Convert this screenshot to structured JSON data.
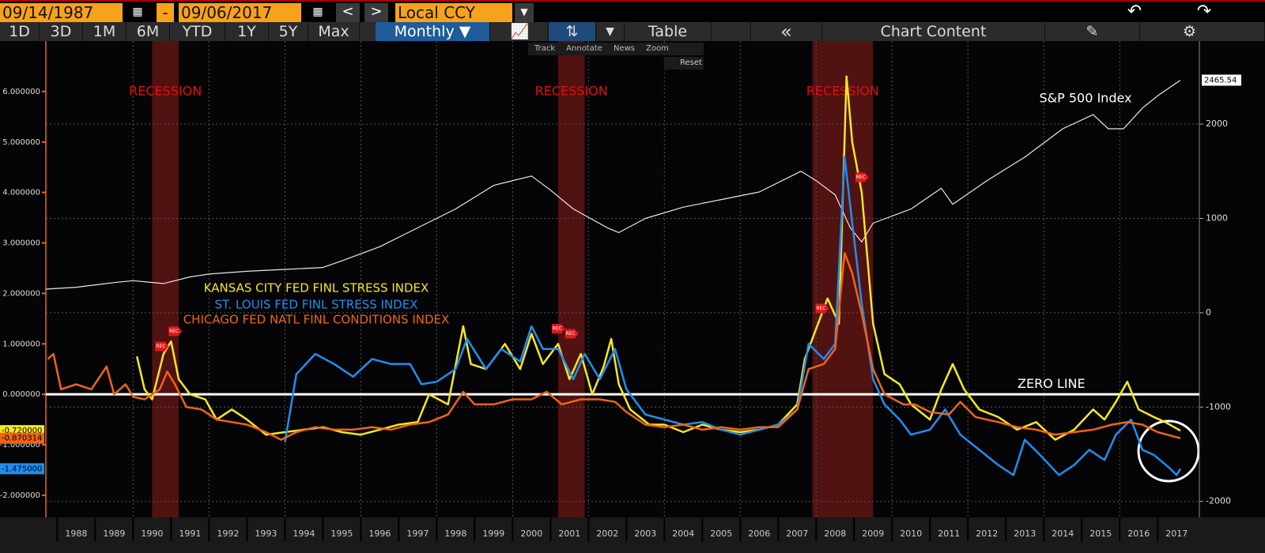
{
  "toolbar": {
    "start_date": "09/14/1987",
    "dash": "-",
    "end_date": "09/06/2017",
    "prev": "<",
    "next": ">",
    "currency": "Local CCY",
    "ranges": [
      "1D",
      "3D",
      "1M",
      "6M",
      "YTD",
      "1Y",
      "5Y",
      "Max"
    ],
    "frequency": "Monthly",
    "table": "Table",
    "collapse": "«",
    "chart_content": "Chart Content",
    "tools": [
      "Track",
      "Annotate",
      "News",
      "Zoom"
    ],
    "reset": "Reset"
  },
  "chart_data": {
    "type": "line",
    "xlim": [
      1987.7,
      2018.1
    ],
    "xticks": [
      1988,
      1989,
      1990,
      1991,
      1992,
      1993,
      1994,
      1995,
      1996,
      1997,
      1998,
      1999,
      2000,
      2001,
      2002,
      2003,
      2004,
      2005,
      2006,
      2007,
      2008,
      2009,
      2010,
      2011,
      2012,
      2013,
      2014,
      2015,
      2016,
      2017
    ],
    "xgrid": [
      1990,
      1992,
      1994,
      1996,
      1998,
      2000,
      2002,
      2004,
      2006,
      2008,
      2010,
      2012,
      2014,
      2016
    ],
    "ylim": [
      -2.44,
      7.0
    ],
    "yticks": [
      {
        "value": -2,
        "label": "-2.000000"
      },
      {
        "value": -1,
        "label": "-1.000000"
      },
      {
        "value": 0,
        "label": "0.000000"
      },
      {
        "value": 1,
        "label": "1.000000"
      },
      {
        "value": 2,
        "label": "2.000000"
      },
      {
        "value": 3,
        "label": "3.000000"
      },
      {
        "value": 4,
        "label": "4.000000"
      },
      {
        "value": 5,
        "label": "5.000000"
      },
      {
        "value": 6,
        "label": "6.000000"
      }
    ],
    "y2lim": [
      -2170,
      2880
    ],
    "y2ticks": [
      -2000,
      -1000,
      0,
      1000,
      2000
    ],
    "grid": true,
    "zero_line": 0,
    "recessions": [
      {
        "start": 1990.5,
        "end": 1991.2,
        "label": "RECESSION"
      },
      {
        "start": 2001.2,
        "end": 2001.9,
        "label": "RECESSION"
      },
      {
        "start": 2007.9,
        "end": 2009.5,
        "label": "RECESSION"
      }
    ],
    "rec_flag_label": "REC",
    "rec_flags": [
      {
        "x": 1990.75,
        "y": 0.95
      },
      {
        "x": 1991.1,
        "y": 1.25
      },
      {
        "x": 2001.2,
        "y": 1.3
      },
      {
        "x": 2001.55,
        "y": 1.2
      },
      {
        "x": 2008.15,
        "y": 1.7
      },
      {
        "x": 2009.2,
        "y": 4.3
      }
    ],
    "annotations": [
      {
        "text": "ZERO LINE",
        "x": 2014.2,
        "y": 0.2
      }
    ],
    "series": [
      {
        "name": "S&P 500 Index",
        "color": "#e8e8e8",
        "axis": "y2",
        "last_label": "2465.54",
        "x": [
          1987.7,
          1988.5,
          1989.5,
          1990.0,
          1990.8,
          1991.5,
          1992.0,
          1993.0,
          1994.0,
          1995.0,
          1995.5,
          1996.5,
          1997.5,
          1998.5,
          1999.5,
          2000.5,
          2001.0,
          2001.6,
          2002.5,
          2002.8,
          2003.5,
          2004.5,
          2005.5,
          2006.5,
          2007.6,
          2008.0,
          2008.5,
          2008.9,
          2009.2,
          2009.5,
          2010.5,
          2011.3,
          2011.6,
          2012.5,
          2013.5,
          2014.5,
          2015.3,
          2015.7,
          2016.1,
          2016.6,
          2017.0,
          2017.6
        ],
        "values": [
          250,
          270,
          320,
          340,
          310,
          380,
          410,
          440,
          460,
          480,
          550,
          700,
          900,
          1100,
          1350,
          1450,
          1300,
          1100,
          900,
          850,
          1000,
          1120,
          1200,
          1280,
          1500,
          1400,
          1250,
          900,
          750,
          950,
          1100,
          1320,
          1150,
          1400,
          1650,
          1950,
          2100,
          1950,
          1950,
          2170,
          2300,
          2465.54
        ]
      },
      {
        "name": "KANSAS CITY FED FINL STRESS INDEX",
        "color": "#f5e81c",
        "axis": "y",
        "last_label": "-0.720000",
        "x": [
          1990.1,
          1990.3,
          1990.5,
          1990.8,
          1991.0,
          1991.2,
          1991.5,
          1991.9,
          1992.2,
          1992.6,
          1993.0,
          1993.5,
          1994.0,
          1994.5,
          1995.0,
          1995.5,
          1996.0,
          1996.5,
          1997.0,
          1997.5,
          1997.8,
          1998.3,
          1998.7,
          1998.9,
          1999.3,
          1999.8,
          2000.2,
          2000.5,
          2000.8,
          2001.2,
          2001.5,
          2001.8,
          2002.1,
          2002.4,
          2002.6,
          2002.8,
          2003.1,
          2003.6,
          2004.0,
          2004.5,
          2005.0,
          2005.5,
          2006.0,
          2006.5,
          2007.0,
          2007.5,
          2007.7,
          2008.0,
          2008.3,
          2008.6,
          2008.8,
          2008.95,
          2009.2,
          2009.5,
          2009.8,
          2010.2,
          2010.5,
          2011.0,
          2011.3,
          2011.6,
          2011.9,
          2012.3,
          2012.8,
          2013.3,
          2013.8,
          2014.3,
          2014.8,
          2015.3,
          2015.6,
          2015.9,
          2016.2,
          2016.5,
          2016.9,
          2017.2,
          2017.6
        ],
        "values": [
          0.75,
          0.1,
          -0.1,
          0.8,
          1.05,
          0.3,
          0.0,
          -0.1,
          -0.5,
          -0.3,
          -0.5,
          -0.8,
          -0.75,
          -0.7,
          -0.65,
          -0.75,
          -0.8,
          -0.7,
          -0.6,
          -0.55,
          0.0,
          -0.2,
          1.35,
          0.6,
          0.5,
          1.0,
          0.5,
          1.2,
          0.6,
          1.0,
          0.3,
          0.8,
          0.0,
          0.55,
          1.1,
          0.2,
          -0.3,
          -0.6,
          -0.6,
          -0.75,
          -0.6,
          -0.7,
          -0.75,
          -0.7,
          -0.6,
          -0.2,
          0.7,
          1.3,
          1.9,
          1.4,
          6.3,
          5.0,
          4.0,
          1.4,
          0.4,
          0.2,
          -0.2,
          -0.5,
          0.1,
          0.6,
          0.1,
          -0.3,
          -0.45,
          -0.7,
          -0.55,
          -0.9,
          -0.7,
          -0.3,
          -0.5,
          -0.15,
          0.25,
          -0.3,
          -0.45,
          -0.55,
          -0.72
        ]
      },
      {
        "name": "ST. LOUIS FED FINL STRESS INDEX",
        "color": "#1e8ff0",
        "axis": "y",
        "last_label": "-1.475000",
        "x": [
          1994.0,
          1994.3,
          1994.8,
          1995.3,
          1995.8,
          1996.3,
          1996.8,
          1997.3,
          1997.6,
          1998.0,
          1998.5,
          1998.8,
          1999.3,
          1999.7,
          2000.2,
          2000.5,
          2000.8,
          2001.2,
          2001.6,
          2001.9,
          2002.3,
          2002.7,
          2003.0,
          2003.5,
          2004.0,
          2004.5,
          2005.0,
          2005.5,
          2006.0,
          2006.5,
          2007.0,
          2007.5,
          2007.8,
          2008.2,
          2008.5,
          2008.75,
          2008.95,
          2009.2,
          2009.5,
          2009.8,
          2010.2,
          2010.5,
          2011.0,
          2011.4,
          2011.8,
          2012.3,
          2012.8,
          2013.2,
          2013.5,
          2013.9,
          2014.4,
          2014.8,
          2015.2,
          2015.6,
          2015.9,
          2016.3,
          2016.6,
          2016.9,
          2017.3,
          2017.5,
          2017.6
        ],
        "values": [
          -0.95,
          0.4,
          0.8,
          0.6,
          0.35,
          0.7,
          0.6,
          0.6,
          0.2,
          0.25,
          0.5,
          1.1,
          0.5,
          0.9,
          0.65,
          1.35,
          0.9,
          0.9,
          0.3,
          0.8,
          0.3,
          0.9,
          0.1,
          -0.4,
          -0.5,
          -0.6,
          -0.55,
          -0.7,
          -0.8,
          -0.7,
          -0.6,
          -0.3,
          1.0,
          0.7,
          1.0,
          4.7,
          3.4,
          1.8,
          0.3,
          -0.2,
          -0.5,
          -0.8,
          -0.7,
          -0.3,
          -0.8,
          -1.1,
          -1.4,
          -1.6,
          -0.9,
          -1.2,
          -1.6,
          -1.4,
          -1.1,
          -1.3,
          -0.8,
          -0.5,
          -1.1,
          -1.2,
          -1.45,
          -1.6,
          -1.475
        ]
      },
      {
        "name": "CHICAGO FED NATL FINL CONDITIONS INDEX",
        "color": "#f06414",
        "axis": "y",
        "last_label": "-0.870314",
        "x": [
          1987.75,
          1987.9,
          1988.1,
          1988.5,
          1988.9,
          1989.3,
          1989.5,
          1989.8,
          1990.0,
          1990.3,
          1990.7,
          1990.9,
          1991.1,
          1991.4,
          1991.8,
          1992.2,
          1992.6,
          1993.0,
          1993.5,
          1993.9,
          1994.3,
          1994.8,
          1995.3,
          1995.8,
          1996.3,
          1996.8,
          1997.3,
          1997.8,
          1998.3,
          1998.7,
          1999.0,
          1999.5,
          2000.0,
          2000.5,
          2000.9,
          2001.3,
          2001.8,
          2002.3,
          2002.7,
          2003.0,
          2003.5,
          2004.0,
          2004.5,
          2005.0,
          2005.5,
          2006.0,
          2006.5,
          2007.0,
          2007.5,
          2007.8,
          2008.2,
          2008.5,
          2008.75,
          2008.95,
          2009.2,
          2009.5,
          2009.8,
          2010.3,
          2010.6,
          2011.0,
          2011.5,
          2011.8,
          2012.2,
          2012.8,
          2013.3,
          2013.8,
          2014.3,
          2014.8,
          2015.3,
          2015.8,
          2016.2,
          2016.6,
          2017.0,
          2017.6
        ],
        "values": [
          0.7,
          0.8,
          0.1,
          0.2,
          0.1,
          0.55,
          0.0,
          0.2,
          -0.05,
          -0.1,
          0.1,
          0.45,
          0.2,
          -0.25,
          -0.3,
          -0.5,
          -0.55,
          -0.6,
          -0.75,
          -0.9,
          -0.75,
          -0.65,
          -0.7,
          -0.7,
          -0.65,
          -0.7,
          -0.6,
          -0.55,
          -0.4,
          0.05,
          -0.2,
          -0.2,
          -0.1,
          -0.1,
          0.05,
          -0.2,
          -0.1,
          -0.1,
          -0.15,
          -0.35,
          -0.6,
          -0.65,
          -0.6,
          -0.7,
          -0.65,
          -0.7,
          -0.65,
          -0.65,
          -0.3,
          0.5,
          0.6,
          0.9,
          2.8,
          2.4,
          1.6,
          0.5,
          0.0,
          -0.2,
          -0.2,
          -0.35,
          -0.4,
          -0.15,
          -0.45,
          -0.55,
          -0.65,
          -0.7,
          -0.8,
          -0.75,
          -0.7,
          -0.6,
          -0.55,
          -0.6,
          -0.75,
          -0.87
        ]
      }
    ]
  }
}
